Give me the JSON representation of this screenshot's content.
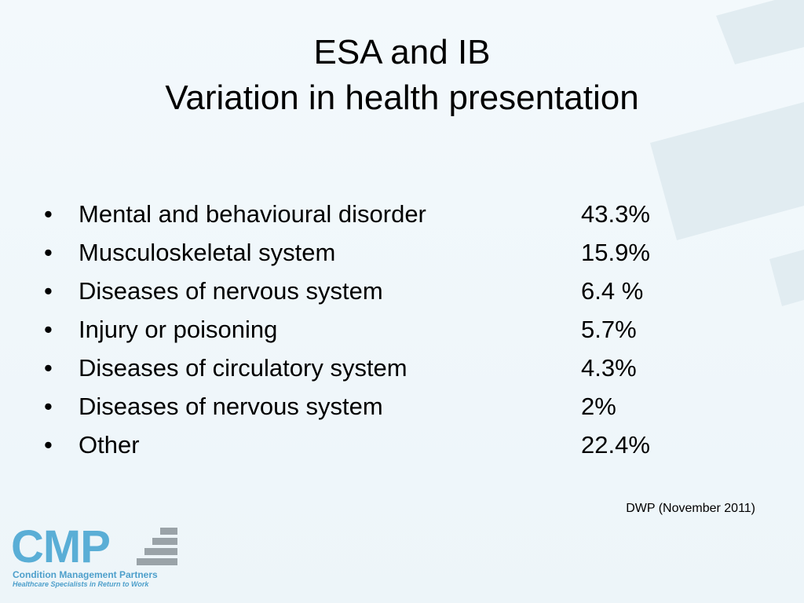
{
  "slide": {
    "title_line1": "ESA and IB",
    "title_line2": "Variation in health presentation",
    "bullet_glyph": "•",
    "items": [
      {
        "label": "Mental and behavioural disorder",
        "value": "43.3%"
      },
      {
        "label": "Musculoskeletal system",
        "value": "15.9%"
      },
      {
        "label": "Diseases of nervous system",
        "value": "6.4 %"
      },
      {
        "label": "Injury or poisoning",
        "value": "5.7%"
      },
      {
        "label": "Diseases of circulatory system",
        "value": "4.3%"
      },
      {
        "label": "Diseases of nervous system",
        "value": "2%"
      },
      {
        "label": "Other",
        "value": "22.4%"
      }
    ],
    "source": "DWP (November 2011)"
  },
  "logo": {
    "letters": "CMP",
    "name": "Condition Management Partners",
    "tagline": "Healthcare Specialists in Return to Work",
    "icon": "stacked-bars-icon"
  },
  "colors": {
    "background": "#eef6fa",
    "decor_bars": "#e1ecf1",
    "logo_blue": "#5aaed6",
    "logo_grey": "#9aa3a8",
    "text": "#000000"
  }
}
